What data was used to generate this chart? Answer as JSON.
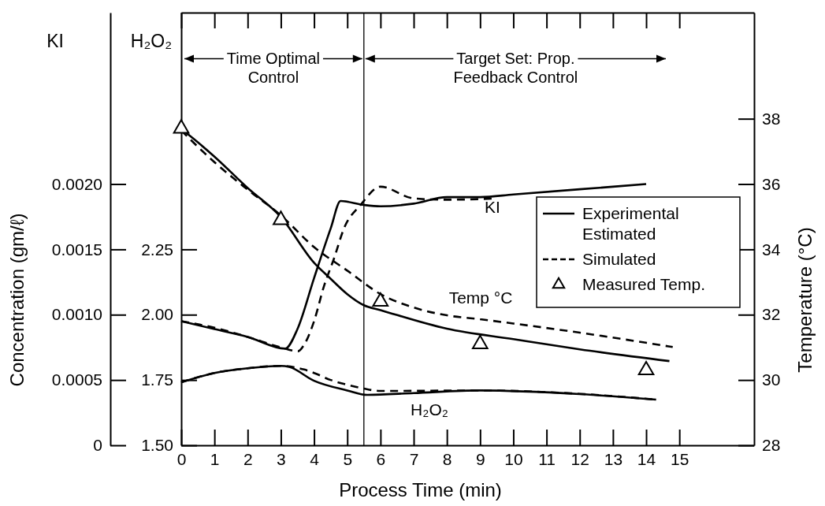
{
  "chart_data": {
    "type": "line",
    "xlabel": "Process Time (min)",
    "ylabel": "Concentration (gm/ℓ)",
    "y2label": "Temperature (°C)",
    "xlim": [
      0,
      17.25
    ],
    "xticks": [
      0,
      1,
      2,
      3,
      4,
      5,
      6,
      7,
      8,
      9,
      10,
      11,
      12,
      13,
      14,
      15
    ],
    "ylim": [
      0,
      0.0033125
    ],
    "yticks": [
      0,
      0.0005,
      {
        "value": 0.001,
        "label": "0.0010"
      },
      0.0015,
      {
        "value": 0.002,
        "label": "0.0020"
      }
    ],
    "y2lim": [
      28,
      41.25
    ],
    "y2ticks": [
      28,
      30,
      32,
      34,
      36,
      38
    ],
    "y3lim": [
      1.5,
      3.15625
    ],
    "y3ticks": [
      {
        "value": 1.5,
        "label": "1.50"
      },
      1.75,
      {
        "value": 2,
        "label": "2.00"
      },
      2.25
    ],
    "legend": "right",
    "grid": false,
    "ref_lines": [
      {
        "axis": "x",
        "value": 5.5,
        "color": "#000000"
      }
    ],
    "annotations": [
      "KI",
      "H₂O₂",
      {
        "text": "Time Optimal Control",
        "x": 5.5,
        "y": 0.00296
      },
      {
        "text": "Target Set: Prop. Feedback Control",
        "x": 5.5,
        "y": 0.00296
      },
      "KI",
      "Temp °C",
      "H₂O₂"
    ],
    "series": [
      {
        "name": "Experimental Estimated",
        "type": "line",
        "line_style": "solid",
        "axis": "y2",
        "color": "#000000",
        "x": [
          0,
          0.5,
          1,
          2,
          3,
          4,
          4.5,
          5,
          5.5,
          6,
          8,
          10,
          12,
          14.7
        ],
        "values": [
          37.69,
          37.28,
          36.84,
          35.88,
          34.99,
          33.59,
          33.1,
          32.63,
          32.29,
          32.14,
          31.57,
          31.25,
          30.94,
          30.58
        ]
      },
      {
        "name": "Simulated",
        "type": "line",
        "line_style": "dashed",
        "axis": "y2",
        "color": "#000000",
        "x": [
          0,
          1,
          2,
          3,
          4,
          5,
          6,
          7,
          8,
          9,
          10,
          12,
          14.8
        ],
        "values": [
          37.64,
          36.67,
          35.83,
          35.04,
          34.07,
          33.35,
          32.63,
          32.22,
          31.98,
          31.86,
          31.73,
          31.45,
          31.01
        ]
      },
      {
        "name": "Measured Temp.",
        "type": "scatter",
        "marker": "triangle",
        "axis": "y2",
        "color": "#000000",
        "x": [
          0,
          3,
          6,
          9,
          14
        ],
        "values": [
          37.7,
          34.9,
          32.4,
          31.1,
          30.3
        ]
      },
      {
        "type": "line",
        "line_style": "solid",
        "color": "#000000",
        "x": [
          0,
          1,
          2,
          3.13,
          3.5,
          4,
          4.5,
          4.8,
          5.5,
          6,
          7,
          8,
          9,
          10,
          12,
          14
        ],
        "values": [
          0.00095,
          0.00089,
          0.00083,
          0.00074,
          0.00089,
          0.00128,
          0.00166,
          0.00187,
          0.00184,
          0.00183,
          0.00185,
          0.0019,
          0.0019,
          0.00192,
          0.00196,
          0.002
        ]
      },
      {
        "type": "line",
        "line_style": "dashed",
        "color": "#000000",
        "x": [
          0,
          1,
          2,
          3,
          3.52,
          3.7,
          4,
          4.3,
          4.6,
          4.9,
          5.4,
          6,
          7,
          8,
          9.5
        ],
        "values": [
          0.00095,
          0.0009,
          0.00083,
          0.00075,
          0.00072,
          0.00077,
          0.00095,
          0.00122,
          0.00143,
          0.00166,
          0.00184,
          0.00198,
          0.00189,
          0.00188,
          0.00189
        ]
      },
      {
        "type": "line",
        "line_style": "solid",
        "axis": "y3",
        "color": "#000000",
        "x": [
          0,
          1,
          2,
          3,
          3.25,
          4,
          5,
          5.6,
          7,
          9,
          12,
          14.3
        ],
        "values": [
          1.741,
          1.777,
          1.795,
          1.804,
          1.8,
          1.747,
          1.71,
          1.693,
          1.7,
          1.71,
          1.696,
          1.675
        ]
      },
      {
        "type": "line",
        "line_style": "dashed",
        "axis": "y3",
        "color": "#000000",
        "x": [
          0,
          1,
          2,
          3,
          3.7,
          4,
          4.5,
          5,
          5.5,
          6,
          9,
          12,
          14.3
        ],
        "values": [
          1.741,
          1.777,
          1.795,
          1.804,
          1.79,
          1.777,
          1.75,
          1.732,
          1.717,
          1.708,
          1.71,
          1.697,
          1.675
        ]
      }
    ]
  }
}
